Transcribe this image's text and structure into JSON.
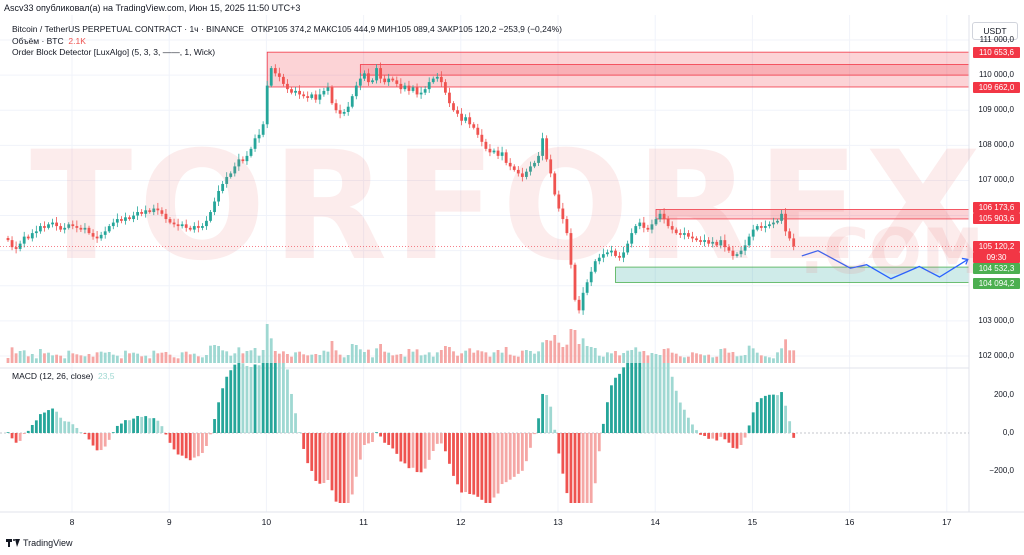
{
  "header": {
    "published": "Ascv33 опубликовал(а) на TradingView.com, Июн 15, 2025 11:50 UTC+3"
  },
  "legend": {
    "symbol_line": "Bitcoin / TetherUS PERPETUAL CONTRACT · 1ч · BINANCE",
    "ohlc": "ОТКР105 374,2  МАКС105 444,9  МИН105 089,4  ЗАКР105 120,2  −253,9 (−0,24%)",
    "volume_label": "Объём · BTC",
    "volume_value": "2.1K",
    "indicator": "Order Block Detector [LuxAlgo] (5, 3, 3, ——, 1, Wick)",
    "macd_label": "MACD (12, 26, close)",
    "macd_value": "23,5"
  },
  "currency": "USDT",
  "footer": {
    "brand": "TradingView"
  },
  "watermark": {
    "main": "TORFOREX",
    "suffix": ".COM"
  },
  "colors": {
    "bull": "#26a69a",
    "bear": "#ef5350",
    "bull_volume": "#9fd8d2",
    "bear_volume": "#f5a7a5",
    "path": "#2962ff",
    "price_line": "#f23645"
  },
  "chart_data": {
    "type": "candlestick",
    "price_axis": {
      "ticks": [
        111000,
        110000,
        109000,
        108000,
        107000,
        106000,
        105000,
        104000,
        103000,
        102000
      ],
      "tick_labels": [
        "111 000,0",
        "110 000,0",
        "109 000,0",
        "108 000,0",
        "107 000,0",
        "106 000,0",
        "105 000,0",
        "104 000,0",
        "103 000,0",
        "102 000,0"
      ],
      "range": [
        101900,
        111200
      ]
    },
    "time_axis": {
      "labels": [
        "8",
        "9",
        "10",
        "11",
        "12",
        "13",
        "14",
        "15",
        "16",
        "17"
      ],
      "candles_per_day": 24
    },
    "price_labels": [
      {
        "text": "110 653,6",
        "kind": "bear-block"
      },
      {
        "text": "109 662,0",
        "kind": "bear-block"
      },
      {
        "text": "106 173,6",
        "kind": "bear-block"
      },
      {
        "text": "105 903,6",
        "kind": "bear-block"
      },
      {
        "text": "105 120,2",
        "kind": "last-price"
      },
      {
        "text": "09:30",
        "kind": "countdown"
      },
      {
        "text": "104 532,3",
        "kind": "bull-block"
      },
      {
        "text": "104 094,2",
        "kind": "bull-block"
      }
    ],
    "order_blocks": [
      {
        "type": "bearish",
        "top": 110653.6,
        "bottom": 109662.0,
        "start_candle": 64
      },
      {
        "type": "bearish",
        "top": 110300,
        "bottom": 110000,
        "start_candle": 87
      },
      {
        "type": "bearish",
        "top": 106173.6,
        "bottom": 105903.6,
        "start_candle": 160
      },
      {
        "type": "bullish",
        "top": 104532.3,
        "bottom": 104094.2,
        "start_candle": 150
      }
    ],
    "last_price": 105120.2,
    "close_path": [
      105300,
      105100,
      105050,
      105200,
      105400,
      105350,
      105500,
      105550,
      105700,
      105650,
      105750,
      105800,
      105700,
      105600,
      105650,
      105750,
      105700,
      105650,
      105600,
      105650,
      105500,
      105400,
      105350,
      105450,
      105550,
      105700,
      105800,
      105900,
      105850,
      105950,
      105900,
      106000,
      106100,
      106050,
      106150,
      106100,
      106200,
      106150,
      106050,
      105900,
      105800,
      105750,
      105700,
      105750,
      105650,
      105600,
      105700,
      105650,
      105700,
      105850,
      106100,
      106400,
      106700,
      106900,
      107100,
      107200,
      107400,
      107600,
      107550,
      107700,
      107900,
      108200,
      108300,
      108600,
      109700,
      110200,
      110050,
      109950,
      109750,
      109600,
      109500,
      109550,
      109450,
      109400,
      109350,
      109450,
      109300,
      109450,
      109550,
      109650,
      109200,
      109000,
      108900,
      108950,
      109100,
      109400,
      109700,
      109900,
      110050,
      109800,
      109850,
      110200,
      109900,
      109800,
      109900,
      109850,
      109750,
      109600,
      109700,
      109550,
      109650,
      109450,
      109500,
      109600,
      109800,
      109900,
      109950,
      109800,
      109500,
      109200,
      109000,
      108900,
      108700,
      108800,
      108600,
      108500,
      108300,
      108100,
      107900,
      107800,
      107850,
      107700,
      107800,
      107500,
      107400,
      107300,
      107200,
      107100,
      107250,
      107400,
      107500,
      107700,
      108200,
      107600,
      107200,
      106600,
      106200,
      105900,
      105500,
      104600,
      103600,
      103300,
      103800,
      104100,
      104400,
      104700,
      104800,
      104900,
      104950,
      105000,
      104850,
      104800,
      104950,
      105200,
      105500,
      105700,
      105800,
      105650,
      105600,
      105750,
      105900,
      106050,
      105900,
      105700,
      105600,
      105500,
      105450,
      105500,
      105400,
      105350,
      105300,
      105250,
      105300,
      105200,
      105250,
      105150,
      105300,
      105100,
      105000,
      104850,
      104900,
      105000,
      105150,
      105400,
      105600,
      105700,
      105650,
      105700,
      105750,
      105800,
      105850,
      106050,
      105550,
      105350,
      105120
    ],
    "forecast_path": [
      {
        "candle": 196,
        "price": 104850
      },
      {
        "candle": 200,
        "price": 105000
      },
      {
        "candle": 208,
        "price": 104500
      },
      {
        "candle": 212,
        "price": 104600
      },
      {
        "candle": 218,
        "price": 104200
      },
      {
        "candle": 225,
        "price": 104550
      },
      {
        "candle": 230,
        "price": 104250
      },
      {
        "candle": 237,
        "price": 104750
      }
    ],
    "macd_axis": {
      "ticks": [
        200,
        0,
        -200
      ],
      "tick_labels": [
        "200,0",
        "0,0",
        "−200,0"
      ]
    }
  }
}
